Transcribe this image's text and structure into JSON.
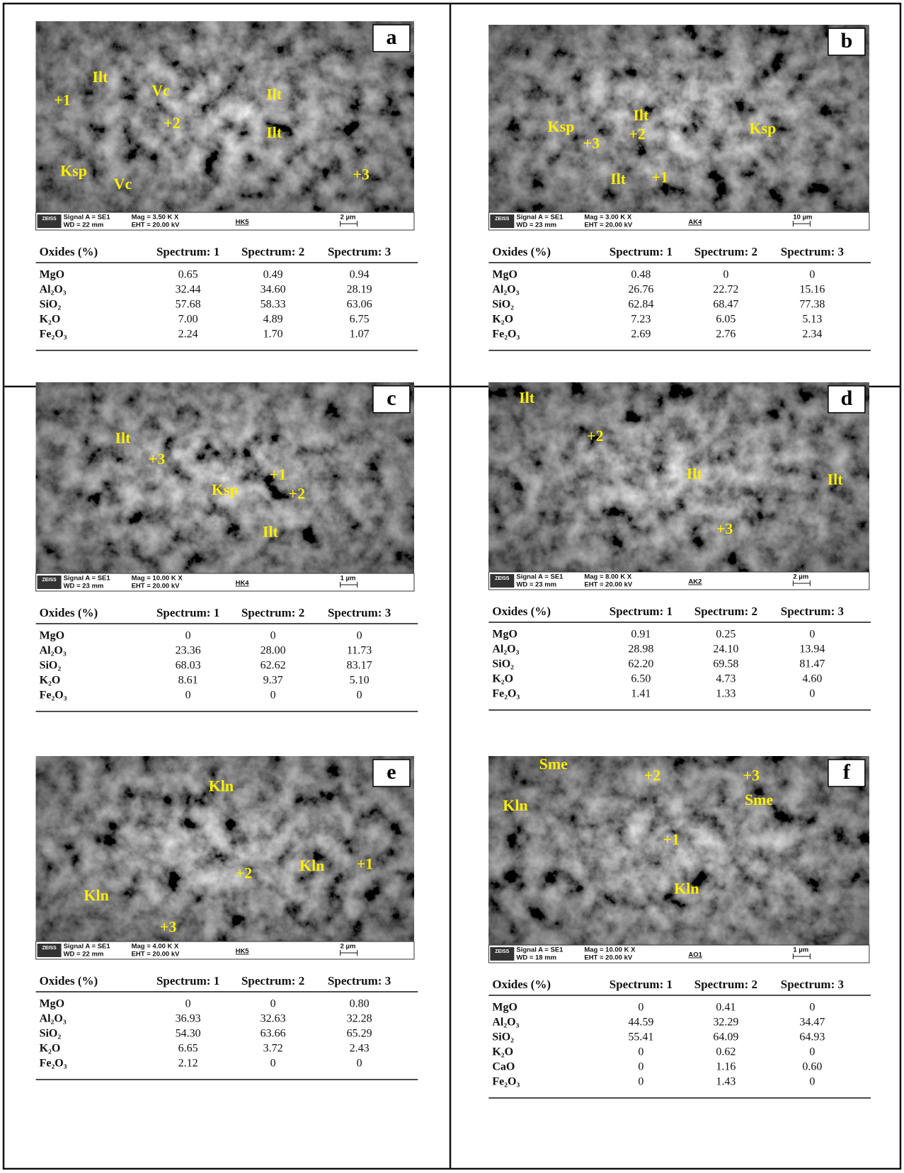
{
  "panels": [
    {
      "letter": "a",
      "annotations": [
        "Ilt",
        "+1",
        "Vc",
        "Ilt",
        "+2",
        "Ilt",
        "Ksp",
        "Vc",
        "+3"
      ],
      "info": {
        "logo": "ZEISS",
        "signal": "Signal A = SE1",
        "wd": "WD =  22 mm",
        "mag": "Mag =  3.50 K X",
        "eht": "EHT = 20.00 kV",
        "sample": "HK5",
        "scale": "2 µm"
      },
      "table": {
        "header": [
          "Oxides (%)",
          "Spectrum: 1",
          "Spectrum: 2",
          "Spectrum: 3"
        ],
        "rows": [
          [
            "MgO",
            "0.65",
            "0.49",
            "0.94"
          ],
          [
            "Al₂O₃",
            "32.44",
            "34.60",
            "28.19"
          ],
          [
            "SiO₂",
            "57.68",
            "58.33",
            "63.06"
          ],
          [
            "K₂O",
            "7.00",
            "4.89",
            "6.75"
          ],
          [
            "Fe₂O₃",
            "2.24",
            "1.70",
            "1.07"
          ]
        ]
      }
    },
    {
      "letter": "b",
      "annotations": [
        "Ilt",
        "Ksp",
        "+2",
        "Ksp",
        "+3",
        "Ilt",
        "+1"
      ],
      "info": {
        "logo": "ZEISS",
        "signal": "Signal A = SE1",
        "wd": "WD =  23 mm",
        "mag": "Mag =  3.00 K X",
        "eht": "EHT = 20.00 kV",
        "sample": "AK4",
        "scale": "10 µm"
      },
      "table": {
        "header": [
          "Oxides (%)",
          "Spectrum: 1",
          "Spectrum: 2",
          "Spectrum: 3"
        ],
        "rows": [
          [
            "MgO",
            "0.48",
            "0",
            "0"
          ],
          [
            "Al₂O₃",
            "26.76",
            "22.72",
            "15.16"
          ],
          [
            "SiO₂",
            "62.84",
            "68.47",
            "77.38"
          ],
          [
            "K₂O",
            "7.23",
            "6.05",
            "5.13"
          ],
          [
            "Fe₂O₃",
            "2.69",
            "2.76",
            "2.34"
          ]
        ]
      }
    },
    {
      "letter": "c",
      "annotations": [
        "Ilt",
        "+3",
        "+1",
        "Ksp",
        "+2",
        "Ilt"
      ],
      "info": {
        "logo": "ZEISS",
        "signal": "Signal A = SE1",
        "wd": "WD =  23 mm",
        "mag": "Mag =  10.00 K X",
        "eht": "EHT = 20.00 kV",
        "sample": "HK4",
        "scale": "1 µm"
      },
      "table": {
        "header": [
          "Oxides (%)",
          "Spectrum: 1",
          "Spectrum: 2",
          "Spectrum: 3"
        ],
        "rows": [
          [
            "MgO",
            "0",
            "0",
            "0"
          ],
          [
            "Al₂O₃",
            "23.36",
            "28.00",
            "11.73"
          ],
          [
            "SiO₂",
            "68.03",
            "62.62",
            "83.17"
          ],
          [
            "K₂O",
            "8.61",
            "9.37",
            "5.10"
          ],
          [
            "Fe₂O₃",
            "0",
            "0",
            "0"
          ]
        ]
      }
    },
    {
      "letter": "d",
      "annotations": [
        "Ilt",
        "+2",
        "Ilt",
        "Ilt",
        "+3"
      ],
      "info": {
        "logo": "ZEISS",
        "signal": "Signal A = SE1",
        "wd": "WD =  23 mm",
        "mag": "Mag =  8.00 K X",
        "eht": "EHT = 20.00 kV",
        "sample": "AK2",
        "scale": "2 µm"
      },
      "table": {
        "header": [
          "Oxides (%)",
          "Spectrum: 1",
          "Spectrum: 2",
          "Spectrum: 3"
        ],
        "rows": [
          [
            "MgO",
            "0.91",
            "0.25",
            "0"
          ],
          [
            "Al₂O₃",
            "28.98",
            "24.10",
            "13.94"
          ],
          [
            "SiO₂",
            "62.20",
            "69.58",
            "81.47"
          ],
          [
            "K₂O",
            "6.50",
            "4.73",
            "4.60"
          ],
          [
            "Fe₂O₃",
            "1.41",
            "1.33",
            "0"
          ]
        ]
      }
    },
    {
      "letter": "e",
      "annotations": [
        "Kln",
        "Kln",
        "Kln",
        "+1",
        "+2",
        "+3"
      ],
      "info": {
        "logo": "ZEISS",
        "signal": "Signal A = SE1",
        "wd": "WD =  22 mm",
        "mag": "Mag =  4.00 K X",
        "eht": "EHT = 20.00 kV",
        "sample": "HK5",
        "scale": "2 µm"
      },
      "table": {
        "header": [
          "Oxides (%)",
          "Spectrum: 1",
          "Spectrum: 2",
          "Spectrum: 3"
        ],
        "rows": [
          [
            "MgO",
            "0",
            "0",
            "0.80"
          ],
          [
            "Al₂O₃",
            "36.93",
            "32.63",
            "32.28"
          ],
          [
            "SiO₂",
            "54.30",
            "63.66",
            "65.29"
          ],
          [
            "K₂O",
            "6.65",
            "3.72",
            "2.43"
          ],
          [
            "Fe₂O₃",
            "2.12",
            "0",
            "0"
          ]
        ]
      }
    },
    {
      "letter": "f",
      "annotations": [
        "Sme",
        "+2",
        "+3",
        "Kln",
        "Sme",
        "+1",
        "Kln"
      ],
      "info": {
        "logo": "ZEISS",
        "signal": "Signal A = SE1",
        "wd": "WD =  18 mm",
        "mag": "Mag =  10.00 K X",
        "eht": "EHT = 20.00 kV",
        "sample": "AO1",
        "scale": "1 µm"
      },
      "table": {
        "header": [
          "Oxides (%)",
          "Spectrum: 1",
          "Spectrum: 2",
          "Spectrum: 3"
        ],
        "rows": [
          [
            "MgO",
            "0",
            "0.41",
            "0"
          ],
          [
            "Al₂O₃",
            "44.59",
            "32.29",
            "34.47"
          ],
          [
            "SiO₂",
            "55.41",
            "64.09",
            "64.93"
          ],
          [
            "K₂O",
            "0",
            "0.62",
            "0"
          ],
          [
            "CaO",
            "0",
            "1.16",
            "0.60"
          ],
          [
            "Fe₂O₃",
            "0",
            "1.43",
            "0"
          ]
        ]
      }
    }
  ]
}
